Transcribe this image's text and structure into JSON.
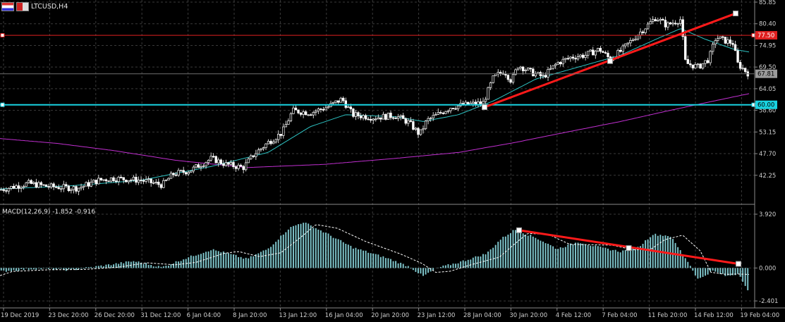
{
  "window": {
    "title": "LTCUSD,H4"
  },
  "indicator": {
    "label": "MACD(12,26,9) -1.852 -0.916"
  },
  "colors": {
    "background": "#000000",
    "grid": "#3a3a3a",
    "candle": "#ffffff",
    "ma_fast": "#2ec4c4",
    "ma_slow": "#c02fd0",
    "hline_red": "#e02020",
    "hline_cyan": "#19d2e0",
    "trendline": "#ff1a1a",
    "macd_hist": "#7fc6cc",
    "macd_signal": "#ffffff"
  },
  "chart_data": {
    "type": "candlestick",
    "price_axis": {
      "ticks": [
        "85.85",
        "80.40",
        "74.95",
        "69.50",
        "64.05",
        "58.60",
        "53.15",
        "47.70",
        "42.25"
      ],
      "range": [
        36.0,
        85.85
      ],
      "current_price_label": "67.81",
      "current_price": 67.81
    },
    "horizontal_lines": [
      {
        "name": "resistance",
        "label": "77.50",
        "value": 77.5,
        "color": "#e02020"
      },
      {
        "name": "support",
        "label": "60.00",
        "value": 60.0,
        "color": "#19d2e0"
      }
    ],
    "price_trendline": {
      "points": [
        [
          0.0,
          59.4
        ],
        [
          0.5,
          71.0
        ],
        [
          1.0,
          83.0
        ]
      ],
      "color": "#ff1a1a"
    },
    "macd_axis": {
      "ticks": [
        "3.920",
        "0.000",
        "-2.401"
      ],
      "range": [
        -2.55,
        3.92
      ]
    },
    "macd_trendline": {
      "points": [
        [
          0.0,
          2.75
        ],
        [
          0.5,
          1.45
        ],
        [
          1.0,
          0.3
        ]
      ],
      "color": "#ff1a1a"
    },
    "time_labels": [
      "19 Dec 2019",
      "23 Dec 20:00",
      "26 Dec 20:00",
      "31 Dec 12:00",
      "6 Jan 04:00",
      "8 Jan 20:00",
      "13 Jan 12:00",
      "16 Jan 04:00",
      "20 Jan 20:00",
      "23 Jan 12:00",
      "28 Jan 04:00",
      "30 Jan 20:00",
      "4 Feb 12:00",
      "7 Feb 04:00",
      "11 Feb 20:00",
      "14 Feb 12:00",
      "19 Feb 04:00"
    ],
    "anchors": [
      [
        0,
        38.6
      ],
      [
        40,
        40.2
      ],
      [
        70,
        39.4
      ],
      [
        110,
        39.0
      ],
      [
        140,
        41.0
      ],
      [
        160,
        41.5
      ],
      [
        200,
        41.0
      ],
      [
        230,
        39.8
      ],
      [
        245,
        42.5
      ],
      [
        270,
        43.5
      ],
      [
        300,
        46.5
      ],
      [
        320,
        45.0
      ],
      [
        345,
        44.2
      ],
      [
        360,
        47.5
      ],
      [
        380,
        50.5
      ],
      [
        400,
        53.0
      ],
      [
        415,
        58.5
      ],
      [
        440,
        58.0
      ],
      [
        465,
        59.5
      ],
      [
        485,
        61.5
      ],
      [
        500,
        57.5
      ],
      [
        530,
        56.8
      ],
      [
        560,
        57.3
      ],
      [
        580,
        55.5
      ],
      [
        595,
        52.5
      ],
      [
        605,
        56.0
      ],
      [
        625,
        58.0
      ],
      [
        640,
        59.5
      ],
      [
        660,
        60.0
      ],
      [
        685,
        60.5
      ],
      [
        700,
        67.0
      ],
      [
        715,
        68.5
      ],
      [
        725,
        66.0
      ],
      [
        735,
        70.0
      ],
      [
        755,
        68.0
      ],
      [
        770,
        67.0
      ],
      [
        790,
        70.5
      ],
      [
        810,
        72.0
      ],
      [
        830,
        72.5
      ],
      [
        850,
        74.0
      ],
      [
        865,
        71.5
      ],
      [
        880,
        73.5
      ],
      [
        900,
        77.0
      ],
      [
        915,
        79.5
      ],
      [
        930,
        82.0
      ],
      [
        945,
        80.0
      ],
      [
        965,
        81.5
      ],
      [
        972,
        70.5
      ],
      [
        990,
        69.5
      ],
      [
        1005,
        71.5
      ],
      [
        1015,
        77.0
      ],
      [
        1030,
        76.0
      ],
      [
        1040,
        75.5
      ],
      [
        1045,
        70.5
      ],
      [
        1060,
        68.0
      ]
    ],
    "ma_fast_anchors": [
      [
        0,
        38.8
      ],
      [
        100,
        39.6
      ],
      [
        200,
        41.0
      ],
      [
        300,
        44.5
      ],
      [
        380,
        48.0
      ],
      [
        440,
        54.5
      ],
      [
        490,
        57.5
      ],
      [
        560,
        57.0
      ],
      [
        600,
        55.8
      ],
      [
        650,
        57.5
      ],
      [
        700,
        61.0
      ],
      [
        760,
        66.5
      ],
      [
        820,
        69.5
      ],
      [
        880,
        72.5
      ],
      [
        930,
        76.5
      ],
      [
        965,
        79.2
      ],
      [
        1000,
        76.5
      ],
      [
        1040,
        74.0
      ],
      [
        1062,
        73.3
      ]
    ],
    "ma_slow_anchors": [
      [
        0,
        51.5
      ],
      [
        80,
        50.3
      ],
      [
        160,
        48.5
      ],
      [
        250,
        46.0
      ],
      [
        350,
        44.2
      ],
      [
        460,
        45.0
      ],
      [
        560,
        46.5
      ],
      [
        650,
        48.0
      ],
      [
        730,
        50.5
      ],
      [
        800,
        53.0
      ],
      [
        880,
        55.8
      ],
      [
        940,
        58.2
      ],
      [
        1000,
        60.5
      ],
      [
        1062,
        62.8
      ]
    ],
    "macd_anchors": [
      [
        0,
        -0.25
      ],
      [
        50,
        -0.05
      ],
      [
        100,
        -0.15
      ],
      [
        150,
        0.2
      ],
      [
        190,
        0.5
      ],
      [
        230,
        0.05
      ],
      [
        260,
        0.65
      ],
      [
        300,
        1.35
      ],
      [
        320,
        1.1
      ],
      [
        350,
        0.65
      ],
      [
        380,
        1.4
      ],
      [
        410,
        2.9
      ],
      [
        430,
        3.35
      ],
      [
        460,
        2.6
      ],
      [
        500,
        1.5
      ],
      [
        550,
        0.7
      ],
      [
        580,
        0.1
      ],
      [
        600,
        -0.6
      ],
      [
        620,
        0.0
      ],
      [
        650,
        0.4
      ],
      [
        690,
        1.05
      ],
      [
        710,
        2.1
      ],
      [
        730,
        2.8
      ],
      [
        760,
        2.2
      ],
      [
        790,
        1.4
      ],
      [
        820,
        1.9
      ],
      [
        850,
        1.5
      ],
      [
        880,
        1.2
      ],
      [
        905,
        1.5
      ],
      [
        925,
        2.45
      ],
      [
        950,
        2.35
      ],
      [
        975,
        0.5
      ],
      [
        990,
        -0.85
      ],
      [
        1010,
        -0.2
      ],
      [
        1030,
        -0.6
      ],
      [
        1048,
        -0.4
      ],
      [
        1062,
        -1.85
      ]
    ]
  }
}
